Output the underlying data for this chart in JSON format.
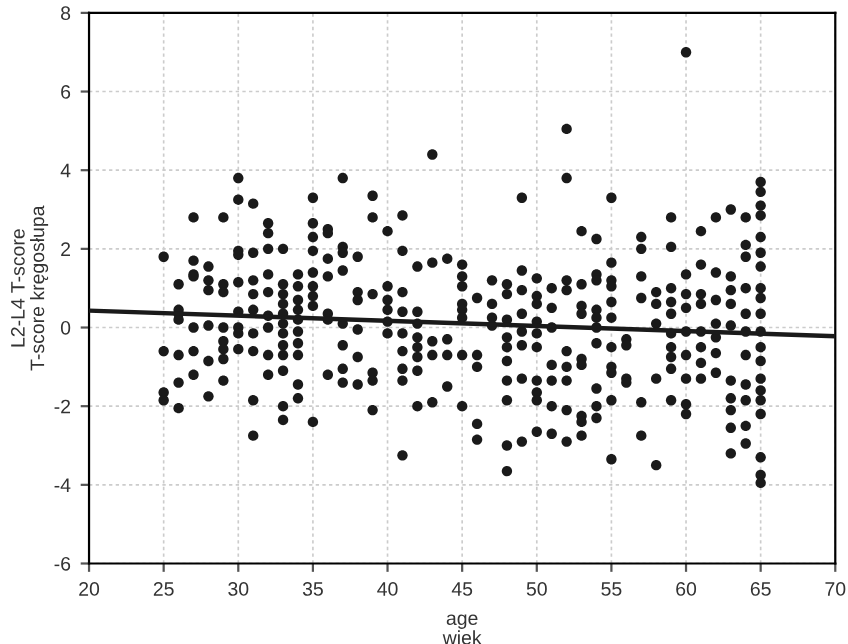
{
  "chart_data": {
    "type": "scatter",
    "xlabel": "age\nwiek",
    "ylabel": "L2-L4 T-score\nT-score kręgosłupa",
    "xlim": [
      20,
      70
    ],
    "xticks": [
      20,
      25,
      30,
      35,
      40,
      45,
      50,
      55,
      60,
      65,
      70
    ],
    "ylim": [
      -6,
      8
    ],
    "yticks": [
      -6,
      -4,
      -2,
      0,
      2,
      4,
      6,
      8
    ],
    "grid": true,
    "marker": "circle",
    "series": [
      {
        "color": "#1a1a1a",
        "x": [
          25,
          25,
          25,
          25,
          26,
          26,
          26,
          26,
          26,
          26,
          26,
          27,
          27,
          27,
          27,
          27,
          27,
          27,
          28,
          28,
          28,
          28,
          28,
          28,
          29,
          29,
          29,
          29,
          29,
          29,
          29,
          29,
          30,
          30,
          30,
          30,
          30,
          30,
          30,
          30,
          30,
          31,
          31,
          31,
          31,
          31,
          31,
          31,
          31,
          31,
          32,
          32,
          32,
          32,
          32,
          32,
          32,
          32,
          32,
          33,
          33,
          33,
          33,
          33,
          33,
          33,
          33,
          33,
          33,
          33,
          33,
          34,
          34,
          34,
          34,
          34,
          34,
          34,
          34,
          34,
          34,
          35,
          35,
          35,
          35,
          35,
          35,
          35,
          35,
          35,
          36,
          36,
          36,
          36,
          36,
          36,
          36,
          37,
          37,
          37,
          37,
          37,
          37,
          37,
          37,
          38,
          38,
          38,
          38,
          38,
          38,
          39,
          39,
          39,
          39,
          39,
          39,
          40,
          40,
          40,
          40,
          40,
          40,
          41,
          41,
          41,
          41,
          41,
          41,
          41,
          41,
          41,
          42,
          42,
          42,
          42,
          42,
          42,
          42,
          42,
          43,
          43,
          43,
          43,
          43,
          44,
          44,
          44,
          44,
          45,
          45,
          45,
          45,
          45,
          45,
          45,
          45,
          46,
          46,
          46,
          46,
          46,
          47,
          47,
          47,
          47,
          48,
          48,
          48,
          48,
          48,
          48,
          48,
          48,
          48,
          48,
          49,
          49,
          49,
          49,
          49,
          49,
          49,
          49,
          50,
          50,
          50,
          50,
          50,
          50,
          50,
          50,
          50,
          50,
          51,
          51,
          51,
          51,
          51,
          51,
          51,
          52,
          52,
          52,
          52,
          52,
          52,
          52,
          52,
          52,
          53,
          53,
          53,
          53,
          53,
          53,
          53,
          53,
          53,
          54,
          54,
          54,
          54,
          54,
          54,
          54,
          54,
          54,
          54,
          55,
          55,
          55,
          55,
          55,
          55,
          55,
          55,
          55,
          55,
          55,
          56,
          56,
          56,
          56,
          57,
          57,
          57,
          57,
          57,
          57,
          58,
          58,
          58,
          58,
          58,
          59,
          59,
          59,
          59,
          59,
          59,
          59,
          59,
          59,
          59,
          60,
          60,
          60,
          60,
          60,
          60,
          60,
          60,
          60,
          61,
          61,
          61,
          61,
          61,
          61,
          61,
          61,
          62,
          62,
          62,
          62,
          62,
          62,
          62,
          63,
          63,
          63,
          63,
          63,
          63,
          63,
          63,
          63,
          63,
          64,
          64,
          64,
          64,
          64,
          64,
          64,
          64,
          64,
          64,
          64,
          65,
          65,
          65,
          65,
          65,
          65,
          65,
          65,
          65,
          65,
          65,
          65,
          65,
          65,
          65,
          65,
          65,
          65,
          65,
          65
        ],
        "values": [
          1.8,
          -0.6,
          -1.65,
          -1.85,
          1.1,
          0.45,
          0.35,
          0.2,
          -0.7,
          -1.4,
          -2.05,
          2.8,
          1.7,
          1.35,
          1.3,
          0,
          -0.6,
          -1.2,
          1.55,
          1.2,
          0.95,
          0.05,
          -0.85,
          -1.75,
          2.8,
          1.1,
          0.9,
          0,
          -0.35,
          -0.55,
          -0.8,
          -1.35,
          3.8,
          3.25,
          1.95,
          1.85,
          1.15,
          0.4,
          0,
          -0.15,
          -0.55,
          3.15,
          1.9,
          1.2,
          0.85,
          0.45,
          -0.15,
          -0.6,
          -1.85,
          -2.75,
          2.65,
          2.4,
          2,
          1.35,
          0.9,
          0.3,
          0,
          -0.7,
          -1.2,
          2,
          1.1,
          0.85,
          0.6,
          0.35,
          0.1,
          -0.15,
          -0.45,
          -0.7,
          -1.1,
          -2,
          -2.35,
          1.35,
          1.05,
          0.7,
          0.45,
          0.2,
          -0.1,
          -0.4,
          -0.7,
          -1.45,
          -1.8,
          3.3,
          2.65,
          2.3,
          1.95,
          1.4,
          1.05,
          0.8,
          0.55,
          -2.4,
          2.5,
          2.4,
          1.75,
          1.3,
          0.35,
          0.2,
          -1.2,
          3.8,
          2.05,
          1.9,
          1.45,
          0.1,
          -0.45,
          -1.05,
          -1.4,
          1.8,
          0.9,
          0.7,
          -0.05,
          -0.75,
          -1.45,
          3.35,
          2.8,
          0.85,
          -1.15,
          -1.35,
          -2.1,
          2.45,
          1.05,
          0.7,
          0.45,
          0.15,
          -0.15,
          2.85,
          1.95,
          0.9,
          0.4,
          -0.15,
          -0.6,
          -1.05,
          -1.35,
          -3.25,
          1.55,
          0.4,
          0.1,
          -0.25,
          -0.5,
          -0.75,
          -1.1,
          -2,
          4.4,
          1.65,
          -0.35,
          -0.7,
          -1.9,
          1.75,
          -0.3,
          -0.7,
          -1.5,
          1.6,
          1.3,
          1.05,
          0.6,
          0.45,
          0.25,
          -0.7,
          -2,
          0.75,
          -0.7,
          -1,
          -2.45,
          -2.85,
          1.2,
          0.6,
          0.25,
          0.05,
          1.1,
          0.85,
          0.2,
          -0.25,
          -0.5,
          -0.85,
          -1.35,
          -1.85,
          -3,
          -3.65,
          3.3,
          1.45,
          0.95,
          0.35,
          -0.1,
          -0.45,
          -1.3,
          -2.9,
          1.25,
          0.8,
          0.6,
          0.15,
          -0.15,
          -0.5,
          -1.35,
          -1.65,
          -1.85,
          -2.65,
          1,
          0.5,
          0,
          -0.95,
          -1.35,
          -2,
          -2.7,
          5.05,
          3.8,
          1.2,
          0.95,
          -0.6,
          -1,
          -1.35,
          -2.1,
          -2.9,
          2.45,
          1.1,
          0.55,
          0.35,
          -0.8,
          -0.95,
          -2.25,
          -2.4,
          -2.75,
          2.25,
          1.35,
          1.2,
          0.45,
          0.25,
          0,
          -0.4,
          -1.55,
          -2,
          -2.3,
          3.3,
          1.65,
          1.2,
          1.05,
          0.65,
          0.25,
          -0.5,
          -1,
          -1.15,
          -1.85,
          -3.35,
          -0.3,
          -0.45,
          -1.3,
          -1.4,
          2.3,
          2,
          1.3,
          0.75,
          -1.9,
          -2.75,
          0.9,
          0.6,
          0.1,
          -1.3,
          -3.5,
          2.8,
          2.05,
          1,
          0.65,
          0.35,
          -0.15,
          -0.5,
          -0.75,
          -1.05,
          -1.85,
          7,
          1.35,
          0.85,
          0.5,
          -0.1,
          -0.7,
          -1.3,
          -1.95,
          -2.2,
          2.45,
          1.6,
          0.85,
          0.6,
          -0.1,
          -0.5,
          -0.9,
          -1.3,
          2.8,
          1.4,
          0.7,
          0.1,
          -0.25,
          -0.65,
          -1.15,
          3,
          1.3,
          0.95,
          0.6,
          0.05,
          -1.35,
          -1.8,
          -2.1,
          -2.55,
          -3.2,
          2.8,
          2.1,
          1.8,
          1,
          0.35,
          -0.1,
          -0.7,
          -1.45,
          -1.85,
          -2.5,
          -2.95,
          3.7,
          3.45,
          3.1,
          2.85,
          2.3,
          1.9,
          1.55,
          1,
          0.75,
          0.35,
          -0.1,
          -0.5,
          -0.85,
          -1.3,
          -1.6,
          -1.85,
          -2.2,
          -3.3,
          -3.75,
          -3.95
        ]
      },
      {
        "type": "line",
        "color": "#1a1a1a",
        "x": [
          20,
          70
        ],
        "values": [
          0.43,
          -0.22
        ],
        "marker": "none",
        "line_style": "solid"
      }
    ]
  }
}
